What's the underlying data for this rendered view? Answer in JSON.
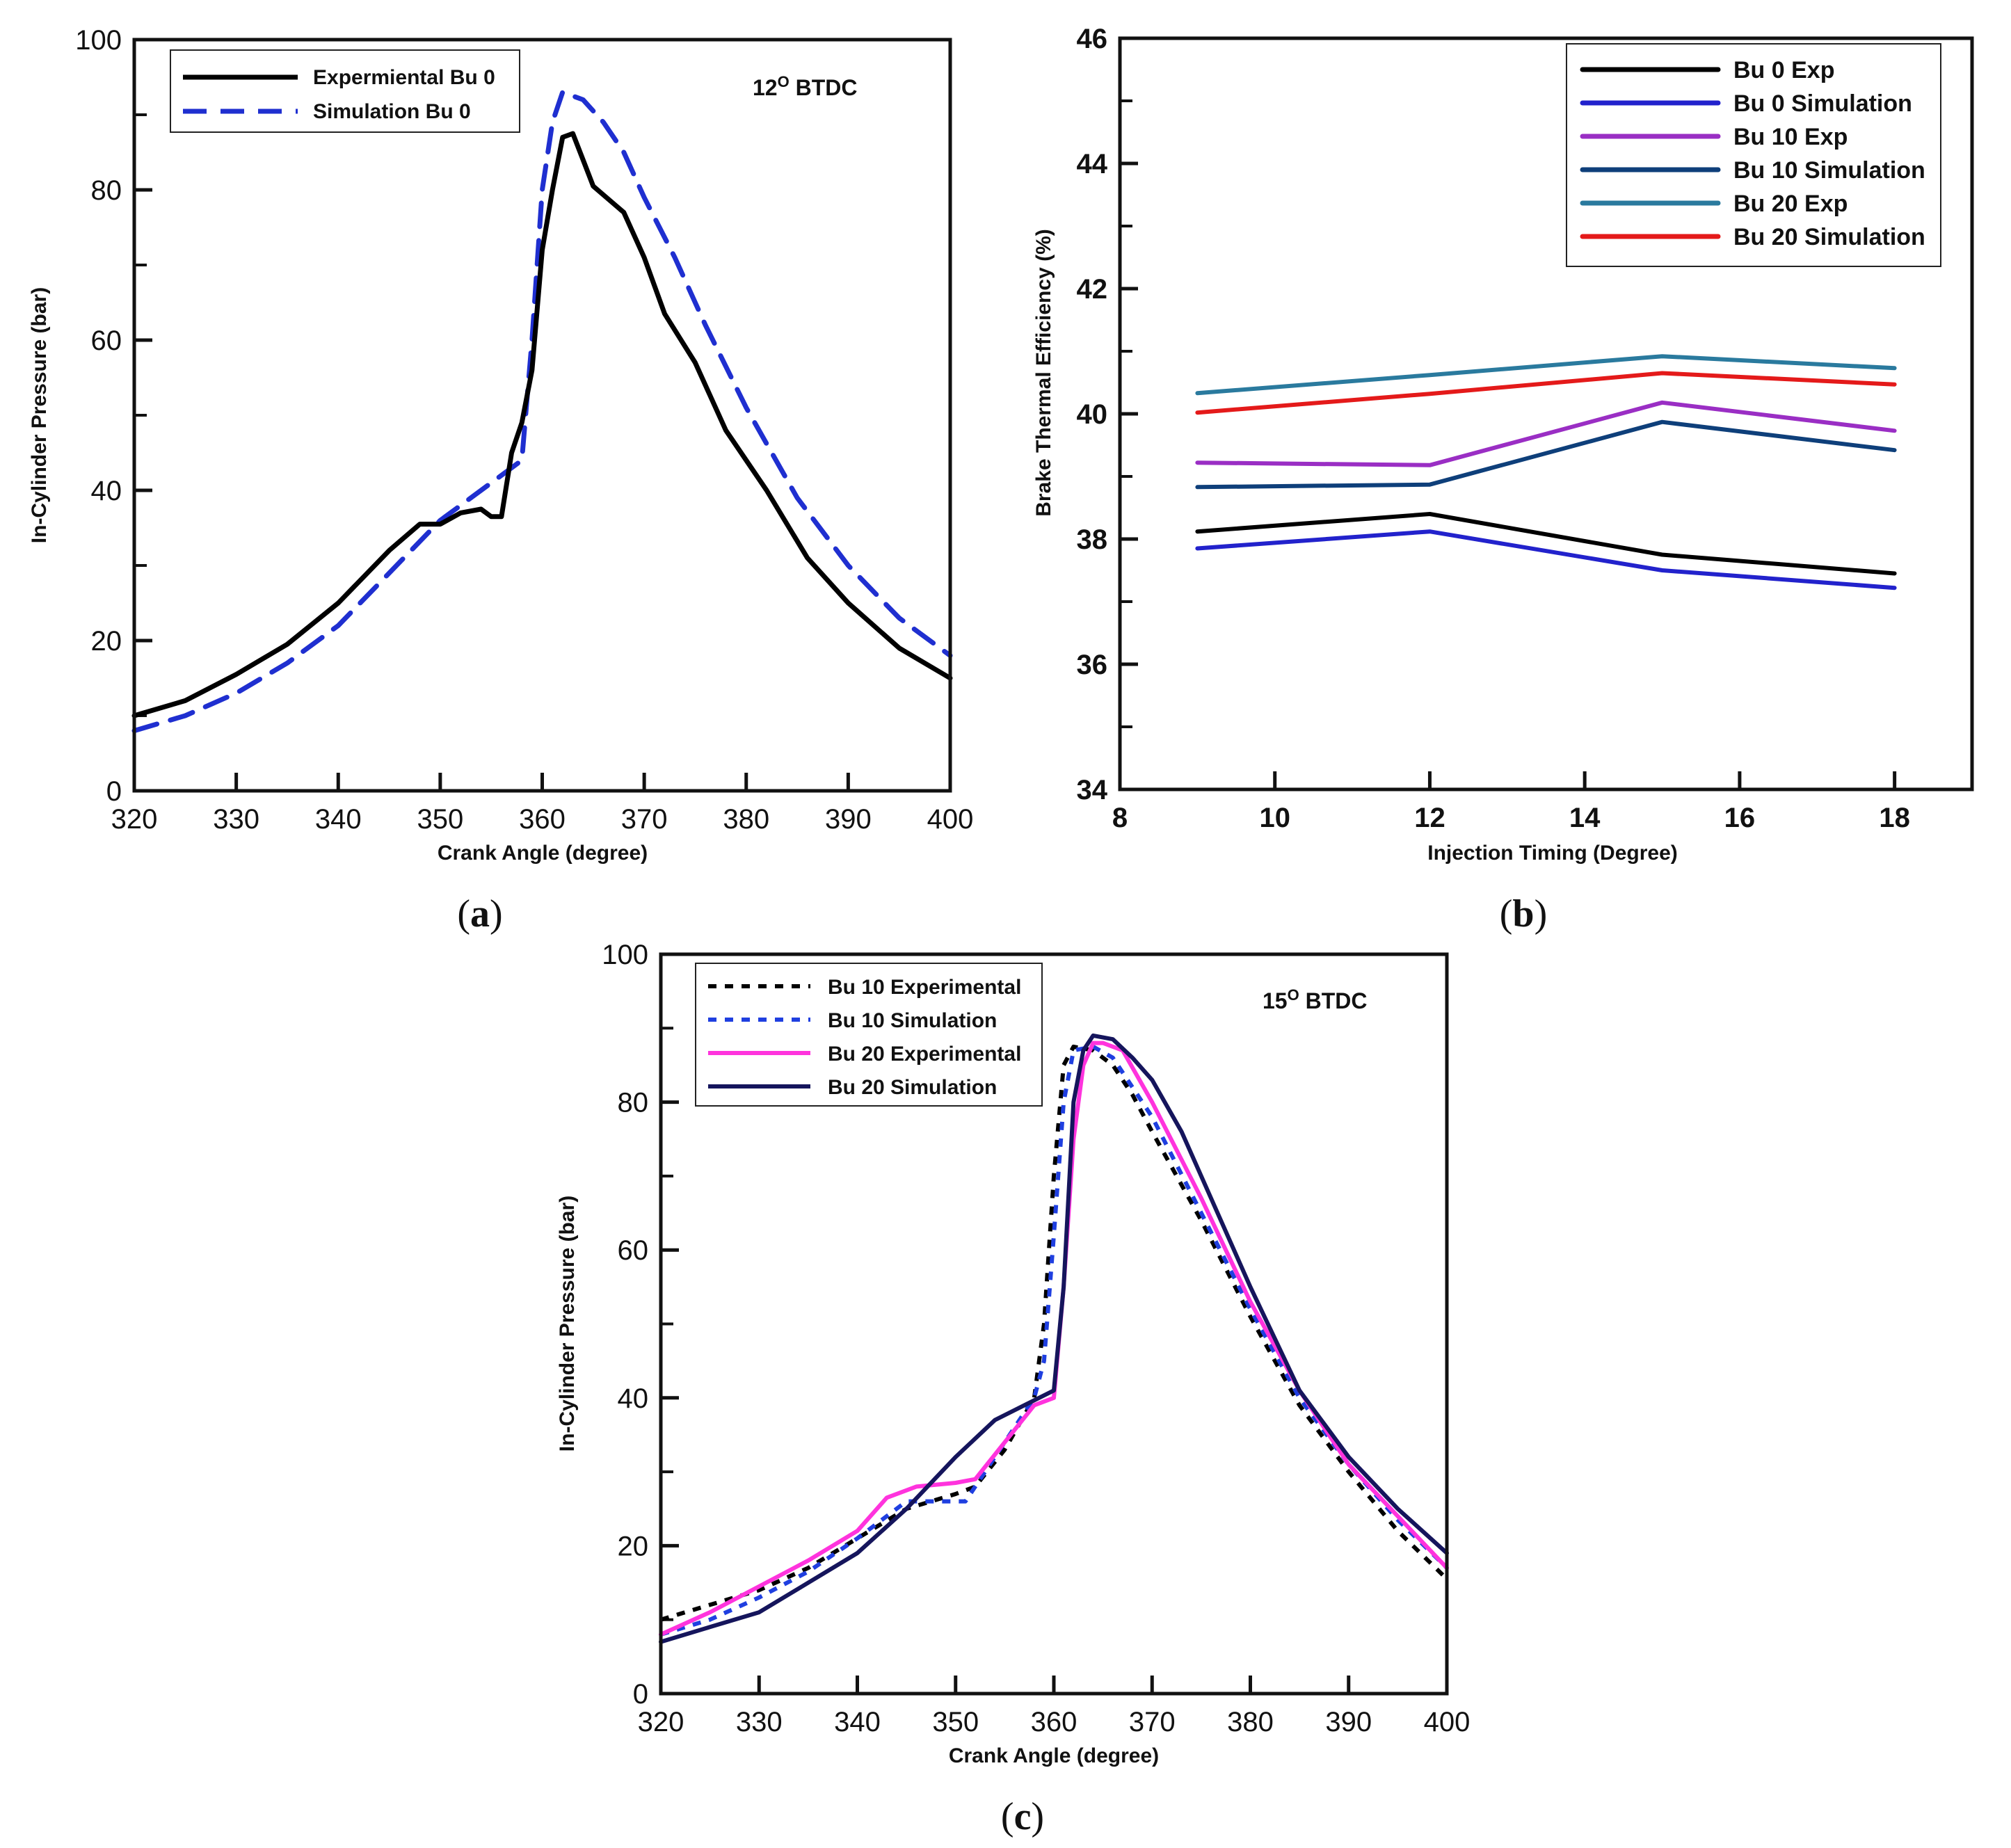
{
  "chart_data": [
    {
      "id": "a",
      "type": "line",
      "panel_label": "a",
      "annotation": "12O BTDC",
      "annotation_main": "12",
      "annotation_sup": "O",
      "annotation_rest": " BTDC",
      "xlabel": "Crank Angle (degree)",
      "ylabel": "In-Cylinder Pressure (bar)",
      "xlim": [
        320,
        400
      ],
      "ylim": [
        0,
        100
      ],
      "xticks": [
        320,
        330,
        340,
        350,
        360,
        370,
        380,
        390,
        400
      ],
      "yticks": [
        0,
        20,
        40,
        60,
        80,
        100
      ],
      "legend_position": "top-left",
      "series": [
        {
          "name": "Expermiental Bu 0",
          "color": "#000000",
          "style": "solid",
          "points": [
            [
              320,
              10
            ],
            [
              325,
              12
            ],
            [
              330,
              15.5
            ],
            [
              335,
              19.5
            ],
            [
              340,
              25
            ],
            [
              345,
              32
            ],
            [
              348,
              35.5
            ],
            [
              350,
              35.5
            ],
            [
              352,
              37
            ],
            [
              354,
              37.5
            ],
            [
              355,
              36.5
            ],
            [
              356,
              36.5
            ],
            [
              357,
              45
            ],
            [
              358,
              49
            ],
            [
              359,
              56
            ],
            [
              360,
              72
            ],
            [
              361,
              80
            ],
            [
              362,
              87
            ],
            [
              363,
              87.5
            ],
            [
              364,
              84
            ],
            [
              365,
              80.5
            ],
            [
              368,
              77
            ],
            [
              370,
              71
            ],
            [
              372,
              63.5
            ],
            [
              375,
              57
            ],
            [
              378,
              48
            ],
            [
              382,
              40
            ],
            [
              386,
              31
            ],
            [
              390,
              25
            ],
            [
              395,
              19
            ],
            [
              400,
              15
            ]
          ]
        },
        {
          "name": "Simulation Bu 0",
          "color": "#1f2fd0",
          "style": "dashed",
          "points": [
            [
              320,
              8
            ],
            [
              325,
              10
            ],
            [
              330,
              13
            ],
            [
              335,
              17
            ],
            [
              340,
              22
            ],
            [
              345,
              29
            ],
            [
              350,
              36
            ],
            [
              355,
              41
            ],
            [
              358,
              44
            ],
            [
              359,
              60
            ],
            [
              360,
              80
            ],
            [
              361,
              89
            ],
            [
              362,
              93
            ],
            [
              364,
              92
            ],
            [
              366,
              89
            ],
            [
              368,
              85
            ],
            [
              370,
              79
            ],
            [
              373,
              71
            ],
            [
              376,
              62
            ],
            [
              380,
              51
            ],
            [
              385,
              39
            ],
            [
              390,
              30
            ],
            [
              395,
              23
            ],
            [
              400,
              18
            ]
          ]
        }
      ]
    },
    {
      "id": "b",
      "type": "line",
      "panel_label": "b",
      "xlabel": "Injection Timing (Degree)",
      "ylabel": "Brake Thermal Efficiency (%)",
      "xlim": [
        8,
        19
      ],
      "ylim": [
        34,
        46
      ],
      "xticks": [
        8,
        10,
        12,
        14,
        16,
        18
      ],
      "yticks": [
        34,
        36,
        38,
        40,
        42,
        44,
        46
      ],
      "legend_position": "top-right",
      "x": [
        9,
        12,
        15,
        18
      ],
      "series": [
        {
          "name": "Bu 0 Exp",
          "color": "#000000",
          "style": "solid",
          "values": [
            38.12,
            38.4,
            37.75,
            37.45
          ]
        },
        {
          "name": "Bu 0 Simulation",
          "color": "#2222cc",
          "style": "solid",
          "values": [
            37.85,
            38.12,
            37.5,
            37.22
          ]
        },
        {
          "name": "Bu 10 Exp",
          "color": "#9a2ec4",
          "style": "solid",
          "values": [
            39.22,
            39.18,
            40.18,
            39.73
          ]
        },
        {
          "name": "Bu 10 Simulation",
          "color": "#0e3f7a",
          "style": "solid",
          "values": [
            38.83,
            38.87,
            39.87,
            39.42
          ]
        },
        {
          "name": "Bu 20 Exp",
          "color": "#2a7a9e",
          "style": "solid",
          "values": [
            40.33,
            40.62,
            40.92,
            40.73
          ]
        },
        {
          "name": "Bu 20 Simulation",
          "color": "#e41a1a",
          "style": "solid",
          "values": [
            40.02,
            40.32,
            40.65,
            40.47
          ]
        }
      ]
    },
    {
      "id": "c",
      "type": "line",
      "panel_label": "c",
      "annotation": "15O BTDC",
      "annotation_main": "15",
      "annotation_sup": "O",
      "annotation_rest": " BTDC",
      "xlabel": "Crank Angle (degree)",
      "ylabel": "In-Cylinder Pressure (bar)",
      "xlim": [
        320,
        400
      ],
      "ylim": [
        0,
        100
      ],
      "xticks": [
        320,
        330,
        340,
        350,
        360,
        370,
        380,
        390,
        400
      ],
      "yticks": [
        0,
        20,
        40,
        60,
        80,
        100
      ],
      "legend_position": "top-left",
      "series": [
        {
          "name": "Bu 10 Experimental",
          "color": "#000000",
          "style": "dotted",
          "points": [
            [
              320,
              10
            ],
            [
              325,
              12
            ],
            [
              330,
              14
            ],
            [
              335,
              17
            ],
            [
              340,
              21
            ],
            [
              345,
              25
            ],
            [
              350,
              27
            ],
            [
              352,
              28
            ],
            [
              355,
              33
            ],
            [
              358,
              40
            ],
            [
              359,
              50
            ],
            [
              360,
              70
            ],
            [
              361,
              85
            ],
            [
              362,
              87.5
            ],
            [
              364,
              87
            ],
            [
              366,
              85
            ],
            [
              368,
              81
            ],
            [
              370,
              76
            ],
            [
              375,
              64
            ],
            [
              380,
              51
            ],
            [
              385,
              39
            ],
            [
              390,
              30
            ],
            [
              395,
              22
            ],
            [
              400,
              15.5
            ]
          ]
        },
        {
          "name": "Bu 10 Simulation",
          "color": "#1f3fe0",
          "style": "dotted",
          "points": [
            [
              320,
              8
            ],
            [
              325,
              10
            ],
            [
              330,
              13
            ],
            [
              335,
              16.5
            ],
            [
              340,
              21
            ],
            [
              345,
              26
            ],
            [
              351,
              26
            ],
            [
              353,
              30
            ],
            [
              355,
              34
            ],
            [
              358,
              40
            ],
            [
              359,
              45
            ],
            [
              360,
              62
            ],
            [
              361,
              80
            ],
            [
              362,
              87
            ],
            [
              364,
              87.5
            ],
            [
              366,
              86
            ],
            [
              370,
              78
            ],
            [
              375,
              65
            ],
            [
              380,
              52
            ],
            [
              385,
              40
            ],
            [
              390,
              31
            ],
            [
              395,
              23.5
            ],
            [
              400,
              17
            ]
          ]
        },
        {
          "name": "Bu 20 Experimental",
          "color": "#ff33dd",
          "style": "solid",
          "points": [
            [
              320,
              8
            ],
            [
              325,
              11
            ],
            [
              330,
              14.5
            ],
            [
              335,
              18
            ],
            [
              340,
              22
            ],
            [
              343,
              26.5
            ],
            [
              346,
              28
            ],
            [
              350,
              28.5
            ],
            [
              352,
              29
            ],
            [
              355,
              34
            ],
            [
              358,
              39
            ],
            [
              360,
              40
            ],
            [
              361,
              55
            ],
            [
              362,
              75
            ],
            [
              363,
              85
            ],
            [
              364,
              88
            ],
            [
              365,
              88
            ],
            [
              367,
              87
            ],
            [
              370,
              80
            ],
            [
              375,
              67
            ],
            [
              380,
              53
            ],
            [
              385,
              41
            ],
            [
              390,
              31
            ],
            [
              395,
              24
            ],
            [
              400,
              17
            ]
          ]
        },
        {
          "name": "Bu 20 Simulation",
          "color": "#15155c",
          "style": "solid",
          "points": [
            [
              320,
              7
            ],
            [
              325,
              9
            ],
            [
              330,
              11
            ],
            [
              335,
              15
            ],
            [
              340,
              19
            ],
            [
              345,
              25
            ],
            [
              350,
              32
            ],
            [
              354,
              37
            ],
            [
              357,
              39
            ],
            [
              360,
              41
            ],
            [
              361,
              55
            ],
            [
              362,
              80
            ],
            [
              363,
              87
            ],
            [
              364,
              89
            ],
            [
              366,
              88.5
            ],
            [
              368,
              86
            ],
            [
              370,
              83
            ],
            [
              373,
              76
            ],
            [
              376,
              67
            ],
            [
              380,
              55
            ],
            [
              385,
              41
            ],
            [
              390,
              32
            ],
            [
              395,
              25
            ],
            [
              400,
              19
            ]
          ]
        }
      ]
    }
  ]
}
